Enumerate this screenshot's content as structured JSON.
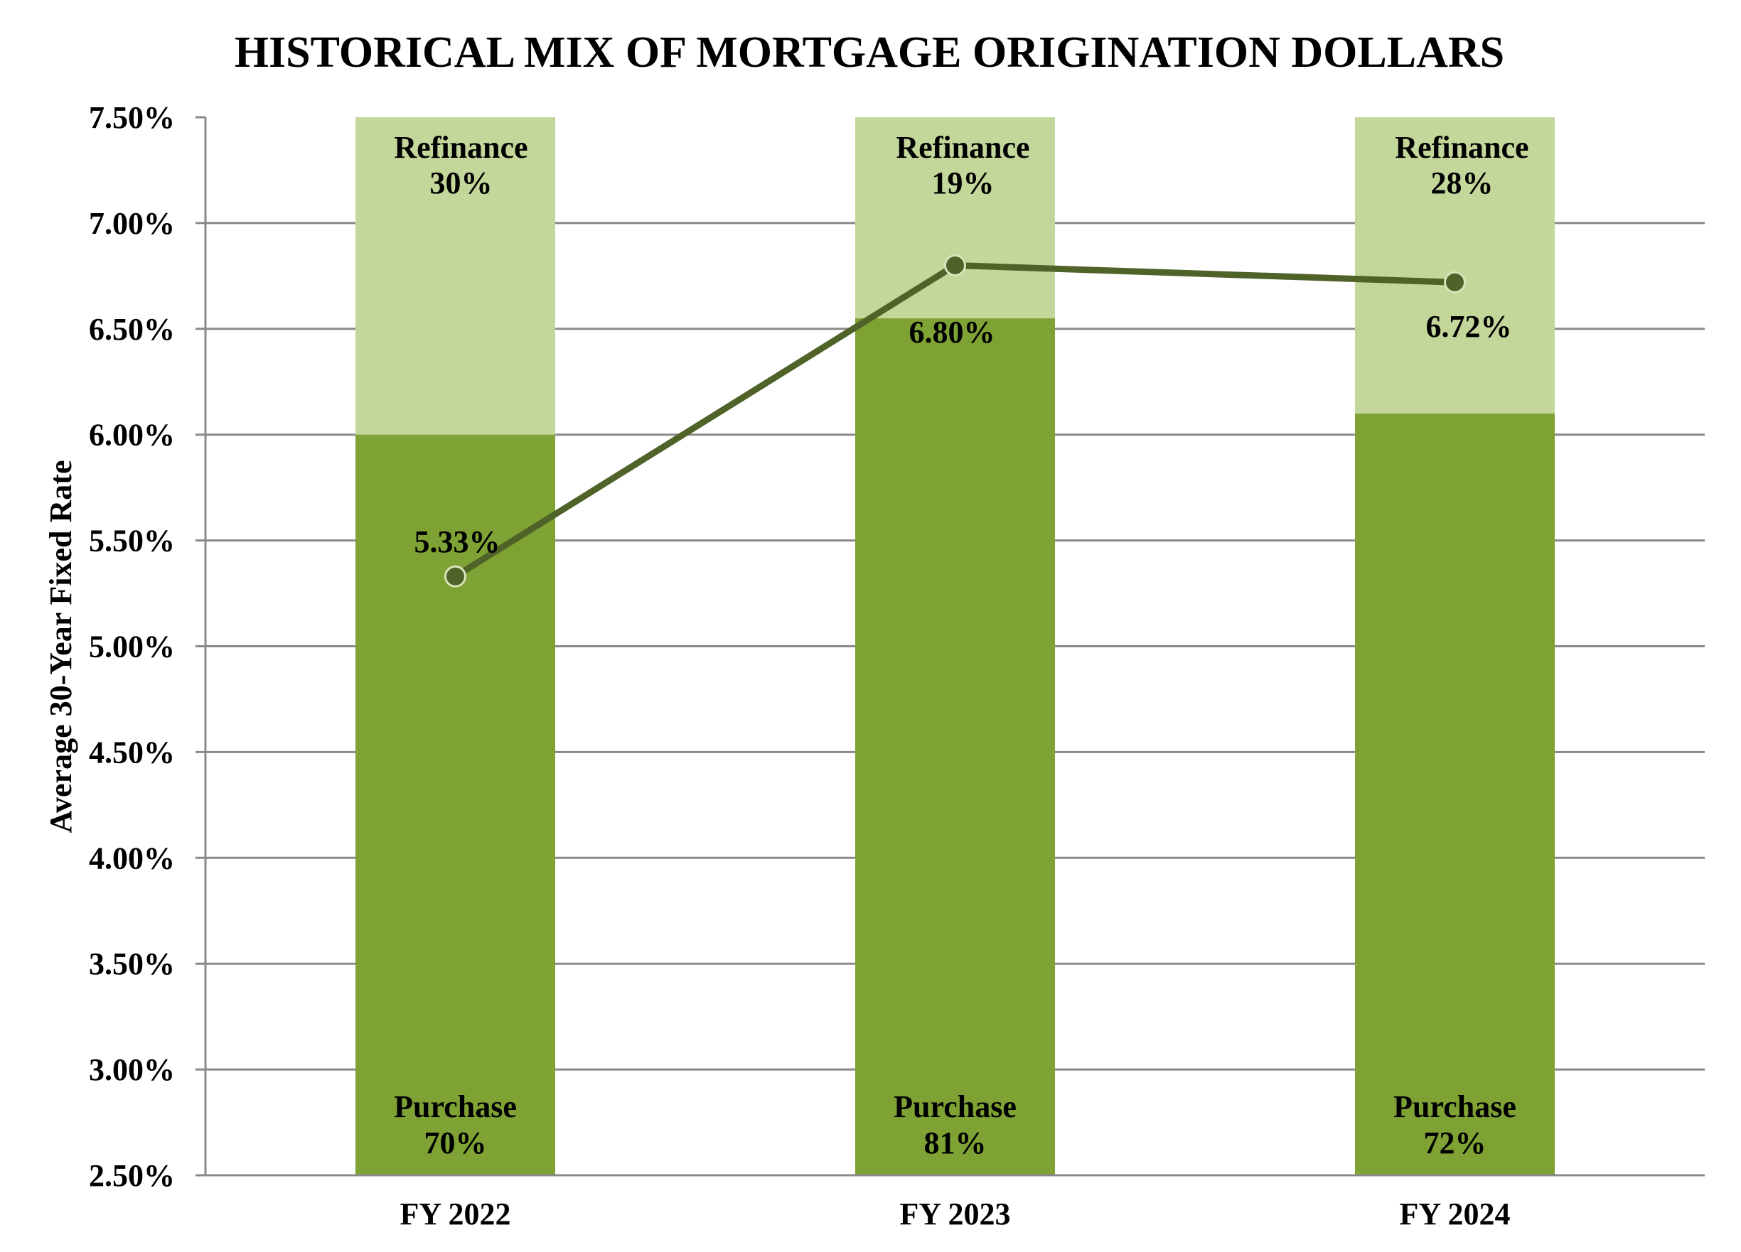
{
  "chart_data": {
    "type": "bar+line",
    "title": "HISTORICAL MIX OF MORTGAGE ORIGINATION DOLLARS",
    "xlabel": "",
    "ylabel": "Average 30-Year Fixed Rate",
    "ylim": [
      2.5,
      7.5
    ],
    "y_ticks": [
      "7.50%",
      "7.00%",
      "6.50%",
      "6.00%",
      "5.50%",
      "5.00%",
      "4.50%",
      "4.00%",
      "3.50%",
      "3.00%",
      "2.50%"
    ],
    "grid": true,
    "legend": "none (segments labeled inline)",
    "categories": [
      "FY 2022",
      "FY 2023",
      "FY 2024"
    ],
    "stacked_bars": {
      "note": "100% stacked bars scaled to the axis range 2.50%–7.50%",
      "series": [
        {
          "name": "Purchase",
          "values": [
            70,
            81,
            72
          ],
          "labels": [
            "70%",
            "81%",
            "72%"
          ],
          "color": "#7EA233"
        },
        {
          "name": "Refinance",
          "values": [
            30,
            19,
            28
          ],
          "labels": [
            "30%",
            "19%",
            "28%"
          ],
          "color": "#C4D79B"
        }
      ]
    },
    "line": {
      "name": "Average 30-Year Fixed Rate",
      "values": [
        5.33,
        6.8,
        6.72
      ],
      "labels": [
        "5.33%",
        "6.80%",
        "6.72%"
      ],
      "color": "#4F6228",
      "marker_border": "#D8E4BC"
    }
  },
  "colors": {
    "purchase": "#7EA233",
    "refinance": "#C4D79B",
    "line": "#4F6228",
    "marker_border": "#D8E4BC",
    "grid": "#898989"
  }
}
